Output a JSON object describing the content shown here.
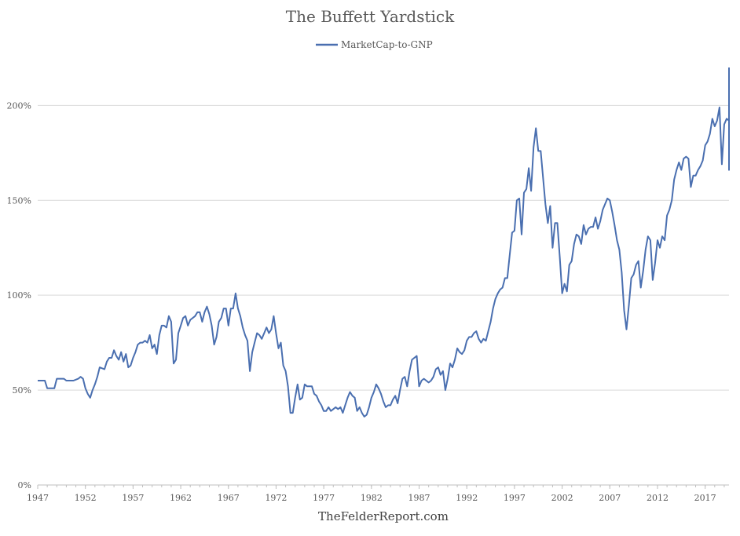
{
  "chart_data": {
    "type": "line",
    "title": "The Buffett Yardstick",
    "footer": "TheFelderReport.com",
    "legend_position": "top-center",
    "grid": true,
    "ylim": [
      0,
      220
    ],
    "xlim": [
      1947,
      2019.5
    ],
    "y_ticks": [
      {
        "value": 0,
        "label": "0%"
      },
      {
        "value": 50,
        "label": "50%"
      },
      {
        "value": 100,
        "label": "100%"
      },
      {
        "value": 150,
        "label": "150%"
      },
      {
        "value": 200,
        "label": "200%"
      }
    ],
    "x_ticks": [
      {
        "value": 1947,
        "label": "1947"
      },
      {
        "value": 1952,
        "label": "1952"
      },
      {
        "value": 1957,
        "label": "1957"
      },
      {
        "value": 1962,
        "label": "1962"
      },
      {
        "value": 1967,
        "label": "1967"
      },
      {
        "value": 1972,
        "label": "1972"
      },
      {
        "value": 1977,
        "label": "1977"
      },
      {
        "value": 1982,
        "label": "1982"
      },
      {
        "value": 1987,
        "label": "1987"
      },
      {
        "value": 1992,
        "label": "1992"
      },
      {
        "value": 1997,
        "label": "1997"
      },
      {
        "value": 2002,
        "label": "2002"
      },
      {
        "value": 2007,
        "label": "2007"
      },
      {
        "value": 2012,
        "label": "2012"
      },
      {
        "value": 2017,
        "label": "2017"
      }
    ],
    "series": [
      {
        "name": "MarketCap-to-GNP",
        "color": "#4a6fb0",
        "points": [
          [
            1947.0,
            55
          ],
          [
            1947.75,
            55
          ],
          [
            1948.0,
            51
          ],
          [
            1948.75,
            51
          ],
          [
            1949.0,
            56
          ],
          [
            1949.75,
            56
          ],
          [
            1950.0,
            55
          ],
          [
            1950.75,
            55
          ],
          [
            1951.25,
            56
          ],
          [
            1951.5,
            57
          ],
          [
            1951.75,
            56
          ],
          [
            1952.0,
            51
          ],
          [
            1952.25,
            48
          ],
          [
            1952.5,
            46
          ],
          [
            1952.75,
            50
          ],
          [
            1953.0,
            53
          ],
          [
            1953.25,
            57
          ],
          [
            1953.5,
            62
          ],
          [
            1954.0,
            61
          ],
          [
            1954.25,
            65
          ],
          [
            1954.5,
            67
          ],
          [
            1954.75,
            67
          ],
          [
            1955.0,
            71
          ],
          [
            1955.25,
            68
          ],
          [
            1955.5,
            66
          ],
          [
            1955.75,
            70
          ],
          [
            1956.0,
            65
          ],
          [
            1956.25,
            69
          ],
          [
            1956.5,
            62
          ],
          [
            1956.75,
            63
          ],
          [
            1957.0,
            67
          ],
          [
            1957.25,
            70
          ],
          [
            1957.5,
            74
          ],
          [
            1957.75,
            75
          ],
          [
            1958.0,
            75
          ],
          [
            1958.25,
            76
          ],
          [
            1958.5,
            75
          ],
          [
            1958.75,
            79
          ],
          [
            1959.0,
            72
          ],
          [
            1959.25,
            74
          ],
          [
            1959.5,
            69
          ],
          [
            1959.75,
            79
          ],
          [
            1960.0,
            84
          ],
          [
            1960.25,
            84
          ],
          [
            1960.5,
            83
          ],
          [
            1960.75,
            89
          ],
          [
            1961.0,
            86
          ],
          [
            1961.25,
            64
          ],
          [
            1961.5,
            66
          ],
          [
            1961.75,
            80
          ],
          [
            1962.0,
            84
          ],
          [
            1962.25,
            88
          ],
          [
            1962.5,
            89
          ],
          [
            1962.75,
            84
          ],
          [
            1963.0,
            87
          ],
          [
            1963.5,
            89
          ],
          [
            1963.75,
            91
          ],
          [
            1964.0,
            91
          ],
          [
            1964.25,
            86
          ],
          [
            1964.5,
            91
          ],
          [
            1964.75,
            94
          ],
          [
            1965.0,
            90
          ],
          [
            1965.25,
            84
          ],
          [
            1965.5,
            74
          ],
          [
            1965.75,
            78
          ],
          [
            1966.0,
            86
          ],
          [
            1966.25,
            88
          ],
          [
            1966.5,
            93
          ],
          [
            1966.75,
            93
          ],
          [
            1967.0,
            84
          ],
          [
            1967.25,
            93
          ],
          [
            1967.5,
            93
          ],
          [
            1967.75,
            101
          ],
          [
            1968.0,
            93
          ],
          [
            1968.25,
            89
          ],
          [
            1968.5,
            83
          ],
          [
            1968.75,
            79
          ],
          [
            1969.0,
            76
          ],
          [
            1969.25,
            60
          ],
          [
            1969.5,
            70
          ],
          [
            1969.75,
            75
          ],
          [
            1970.0,
            80
          ],
          [
            1970.25,
            79
          ],
          [
            1970.5,
            77
          ],
          [
            1970.75,
            80
          ],
          [
            1971.0,
            83
          ],
          [
            1971.25,
            80
          ],
          [
            1971.5,
            82
          ],
          [
            1971.75,
            89
          ],
          [
            1972.0,
            80
          ],
          [
            1972.25,
            72
          ],
          [
            1972.5,
            75
          ],
          [
            1972.75,
            63
          ],
          [
            1973.0,
            60
          ],
          [
            1973.25,
            52
          ],
          [
            1973.5,
            38
          ],
          [
            1973.75,
            38
          ],
          [
            1974.0,
            46
          ],
          [
            1974.25,
            53
          ],
          [
            1974.5,
            45
          ],
          [
            1974.75,
            46
          ],
          [
            1975.0,
            53
          ],
          [
            1975.25,
            52
          ],
          [
            1975.5,
            52
          ],
          [
            1975.75,
            52
          ],
          [
            1976.0,
            48
          ],
          [
            1976.25,
            47
          ],
          [
            1976.5,
            44
          ],
          [
            1976.75,
            42
          ],
          [
            1977.0,
            39
          ],
          [
            1977.25,
            39
          ],
          [
            1977.5,
            41
          ],
          [
            1977.75,
            39
          ],
          [
            1978.0,
            40
          ],
          [
            1978.25,
            41
          ],
          [
            1978.5,
            40
          ],
          [
            1978.75,
            41
          ],
          [
            1979.0,
            38
          ],
          [
            1979.25,
            42
          ],
          [
            1979.5,
            46
          ],
          [
            1979.75,
            49
          ],
          [
            1980.0,
            47
          ],
          [
            1980.25,
            46
          ],
          [
            1980.5,
            39
          ],
          [
            1980.75,
            41
          ],
          [
            1981.0,
            38
          ],
          [
            1981.25,
            36
          ],
          [
            1981.5,
            37
          ],
          [
            1981.75,
            41
          ],
          [
            1982.0,
            46
          ],
          [
            1982.25,
            49
          ],
          [
            1982.5,
            53
          ],
          [
            1982.75,
            51
          ],
          [
            1983.0,
            48
          ],
          [
            1983.25,
            44
          ],
          [
            1983.5,
            41
          ],
          [
            1983.75,
            42
          ],
          [
            1984.0,
            42
          ],
          [
            1984.25,
            45
          ],
          [
            1984.5,
            47
          ],
          [
            1984.75,
            43
          ],
          [
            1985.0,
            50
          ],
          [
            1985.25,
            56
          ],
          [
            1985.5,
            57
          ],
          [
            1985.75,
            52
          ],
          [
            1986.0,
            60
          ],
          [
            1986.25,
            66
          ],
          [
            1986.5,
            67
          ],
          [
            1986.75,
            68
          ],
          [
            1987.0,
            52
          ],
          [
            1987.25,
            55
          ],
          [
            1987.5,
            56
          ],
          [
            1987.75,
            55
          ],
          [
            1988.0,
            54
          ],
          [
            1988.25,
            55
          ],
          [
            1988.5,
            57
          ],
          [
            1988.75,
            61
          ],
          [
            1989.0,
            62
          ],
          [
            1989.25,
            58
          ],
          [
            1989.5,
            60
          ],
          [
            1989.75,
            50
          ],
          [
            1990.0,
            56
          ],
          [
            1990.25,
            64
          ],
          [
            1990.5,
            62
          ],
          [
            1990.75,
            66
          ],
          [
            1991.0,
            72
          ],
          [
            1991.25,
            70
          ],
          [
            1991.5,
            69
          ],
          [
            1991.75,
            71
          ],
          [
            1992.0,
            76
          ],
          [
            1992.25,
            78
          ],
          [
            1992.5,
            78
          ],
          [
            1992.75,
            80
          ],
          [
            1993.0,
            81
          ],
          [
            1993.25,
            77
          ],
          [
            1993.5,
            75
          ],
          [
            1993.75,
            77
          ],
          [
            1994.0,
            76
          ],
          [
            1994.25,
            81
          ],
          [
            1994.5,
            86
          ],
          [
            1994.75,
            93
          ],
          [
            1995.0,
            98
          ],
          [
            1995.25,
            101
          ],
          [
            1995.5,
            103
          ],
          [
            1995.75,
            104
          ],
          [
            1996.0,
            109
          ],
          [
            1996.25,
            109
          ],
          [
            1996.5,
            121
          ],
          [
            1996.75,
            133
          ],
          [
            1997.0,
            134
          ],
          [
            1997.25,
            150
          ],
          [
            1997.5,
            151
          ],
          [
            1997.75,
            132
          ],
          [
            1998.0,
            154
          ],
          [
            1998.25,
            156
          ],
          [
            1998.5,
            167
          ],
          [
            1998.75,
            155
          ],
          [
            1999.0,
            178
          ],
          [
            1999.25,
            188
          ],
          [
            1999.5,
            176
          ],
          [
            1999.75,
            176
          ],
          [
            2000.0,
            162
          ],
          [
            2000.25,
            148
          ],
          [
            2000.5,
            138
          ],
          [
            2000.75,
            147
          ],
          [
            2001.0,
            125
          ],
          [
            2001.25,
            138
          ],
          [
            2001.5,
            138
          ],
          [
            2001.75,
            120
          ],
          [
            2002.0,
            101
          ],
          [
            2002.25,
            106
          ],
          [
            2002.5,
            102
          ],
          [
            2002.75,
            116
          ],
          [
            2003.0,
            118
          ],
          [
            2003.25,
            127
          ],
          [
            2003.5,
            132
          ],
          [
            2003.75,
            131
          ],
          [
            2004.0,
            127
          ],
          [
            2004.25,
            137
          ],
          [
            2004.5,
            132
          ],
          [
            2004.75,
            135
          ],
          [
            2005.0,
            136
          ],
          [
            2005.25,
            136
          ],
          [
            2005.5,
            141
          ],
          [
            2005.75,
            135
          ],
          [
            2006.0,
            139
          ],
          [
            2006.25,
            145
          ],
          [
            2006.5,
            148
          ],
          [
            2006.75,
            151
          ],
          [
            2007.0,
            150
          ],
          [
            2007.25,
            144
          ],
          [
            2007.5,
            137
          ],
          [
            2007.75,
            129
          ],
          [
            2008.0,
            124
          ],
          [
            2008.25,
            112
          ],
          [
            2008.5,
            92
          ],
          [
            2008.75,
            82
          ],
          [
            2009.0,
            95
          ],
          [
            2009.25,
            109
          ],
          [
            2009.5,
            111
          ],
          [
            2009.75,
            116
          ],
          [
            2010.0,
            118
          ],
          [
            2010.25,
            104
          ],
          [
            2010.5,
            113
          ],
          [
            2010.75,
            124
          ],
          [
            2011.0,
            131
          ],
          [
            2011.25,
            129
          ],
          [
            2011.5,
            108
          ],
          [
            2011.75,
            117
          ],
          [
            2012.0,
            129
          ],
          [
            2012.25,
            125
          ],
          [
            2012.5,
            131
          ],
          [
            2012.75,
            129
          ],
          [
            2013.0,
            142
          ],
          [
            2013.25,
            145
          ],
          [
            2013.5,
            150
          ],
          [
            2013.75,
            161
          ],
          [
            2014.0,
            166
          ],
          [
            2014.25,
            170
          ],
          [
            2014.5,
            166
          ],
          [
            2014.75,
            172
          ],
          [
            2015.0,
            173
          ],
          [
            2015.25,
            172
          ],
          [
            2015.5,
            157
          ],
          [
            2015.75,
            163
          ],
          [
            2016.0,
            163
          ],
          [
            2016.25,
            166
          ],
          [
            2016.5,
            168
          ],
          [
            2016.75,
            171
          ],
          [
            2017.0,
            179
          ],
          [
            2017.25,
            181
          ],
          [
            2017.5,
            185
          ],
          [
            2017.75,
            193
          ],
          [
            2018.0,
            189
          ],
          [
            2018.25,
            192
          ],
          [
            2018.5,
            199
          ],
          [
            2018.75,
            169
          ],
          [
            2019.0,
            190
          ],
          [
            2019.25,
            193
          ],
          [
            2019.5,
            192
          ],
          [
            2019.75,
            206
          ],
          [
            2020.0,
            166
          ],
          [
            2020.25,
            220
          ]
        ]
      }
    ]
  }
}
